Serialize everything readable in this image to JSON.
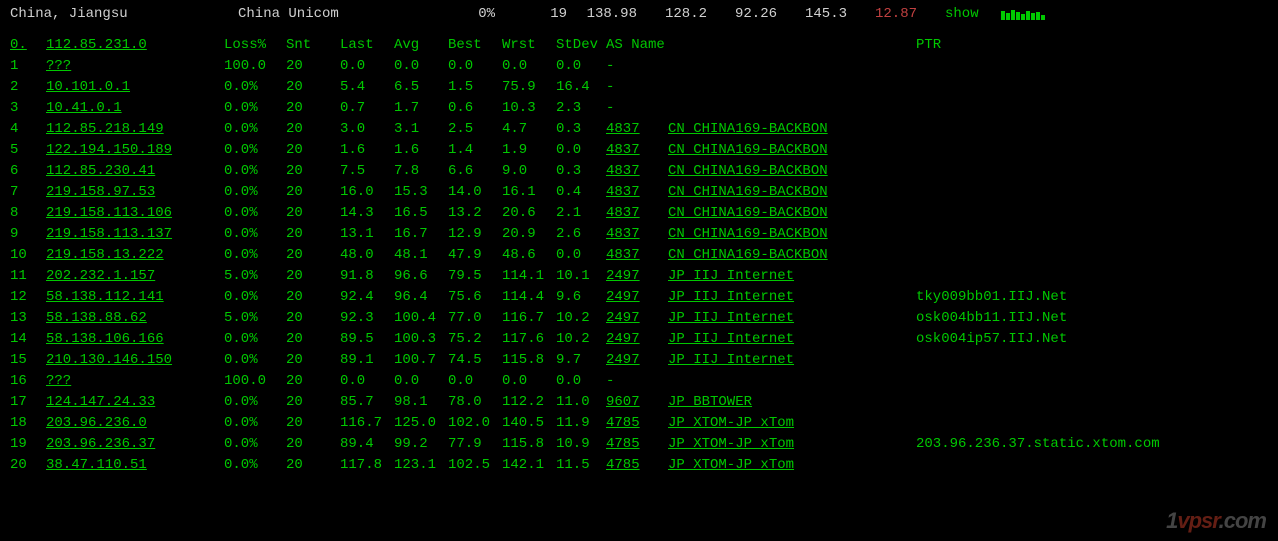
{
  "header": {
    "location": "China, Jiangsu",
    "isp": "China Unicom",
    "pct": "0%",
    "num": "19",
    "stats": [
      "138.98",
      "128.2",
      "92.26",
      "145.3"
    ],
    "red_stat": "12.87",
    "show": "show"
  },
  "columns": {
    "hop": "0.",
    "ip": "112.85.231.0",
    "loss": "Loss%",
    "snt": "Snt",
    "last": "Last",
    "avg": "Avg",
    "best": "Best",
    "wrst": "Wrst",
    "stdev": "StDev",
    "asname": "AS Name",
    "ptr": "PTR"
  },
  "rows": [
    {
      "hop": "1",
      "ip": "???",
      "loss": "100.0",
      "snt": "20",
      "last": "0.0",
      "avg": "0.0",
      "best": "0.0",
      "wrst": "0.0",
      "stdev": "0.0",
      "asn": "",
      "asname": "-",
      "ptr": ""
    },
    {
      "hop": "2",
      "ip": "10.101.0.1",
      "loss": "0.0%",
      "snt": "20",
      "last": "5.4",
      "avg": "6.5",
      "best": "1.5",
      "wrst": "75.9",
      "stdev": "16.4",
      "asn": "",
      "asname": "-",
      "ptr": ""
    },
    {
      "hop": "3",
      "ip": "10.41.0.1",
      "loss": "0.0%",
      "snt": "20",
      "last": "0.7",
      "avg": "1.7",
      "best": "0.6",
      "wrst": "10.3",
      "stdev": "2.3",
      "asn": "",
      "asname": "-",
      "ptr": ""
    },
    {
      "hop": "4",
      "ip": "112.85.218.149",
      "loss": "0.0%",
      "snt": "20",
      "last": "3.0",
      "avg": "3.1",
      "best": "2.5",
      "wrst": "4.7",
      "stdev": "0.3",
      "asn": "4837",
      "asname": "CN CHINA169-BACKBON",
      "ptr": ""
    },
    {
      "hop": "5",
      "ip": "122.194.150.189",
      "loss": "0.0%",
      "snt": "20",
      "last": "1.6",
      "avg": "1.6",
      "best": "1.4",
      "wrst": "1.9",
      "stdev": "0.0",
      "asn": "4837",
      "asname": "CN CHINA169-BACKBON",
      "ptr": ""
    },
    {
      "hop": "6",
      "ip": "112.85.230.41",
      "loss": "0.0%",
      "snt": "20",
      "last": "7.5",
      "avg": "7.8",
      "best": "6.6",
      "wrst": "9.0",
      "stdev": "0.3",
      "asn": "4837",
      "asname": "CN CHINA169-BACKBON",
      "ptr": ""
    },
    {
      "hop": "7",
      "ip": "219.158.97.53",
      "loss": "0.0%",
      "snt": "20",
      "last": "16.0",
      "avg": "15.3",
      "best": "14.0",
      "wrst": "16.1",
      "stdev": "0.4",
      "asn": "4837",
      "asname": "CN CHINA169-BACKBON",
      "ptr": ""
    },
    {
      "hop": "8",
      "ip": "219.158.113.106",
      "loss": "0.0%",
      "snt": "20",
      "last": "14.3",
      "avg": "16.5",
      "best": "13.2",
      "wrst": "20.6",
      "stdev": "2.1",
      "asn": "4837",
      "asname": "CN CHINA169-BACKBON",
      "ptr": ""
    },
    {
      "hop": "9",
      "ip": "219.158.113.137",
      "loss": "0.0%",
      "snt": "20",
      "last": "13.1",
      "avg": "16.7",
      "best": "12.9",
      "wrst": "20.9",
      "stdev": "2.6",
      "asn": "4837",
      "asname": "CN CHINA169-BACKBON",
      "ptr": ""
    },
    {
      "hop": "10",
      "ip": "219.158.13.222",
      "loss": "0.0%",
      "snt": "20",
      "last": "48.0",
      "avg": "48.1",
      "best": "47.9",
      "wrst": "48.6",
      "stdev": "0.0",
      "asn": "4837",
      "asname": "CN CHINA169-BACKBON",
      "ptr": ""
    },
    {
      "hop": "11",
      "ip": "202.232.1.157",
      "loss": "5.0%",
      "snt": "20",
      "last": "91.8",
      "avg": "96.6",
      "best": "79.5",
      "wrst": "114.1",
      "stdev": "10.1",
      "asn": "2497",
      "asname": "JP IIJ Internet",
      "ptr": ""
    },
    {
      "hop": "12",
      "ip": "58.138.112.141",
      "loss": "0.0%",
      "snt": "20",
      "last": "92.4",
      "avg": "96.4",
      "best": "75.6",
      "wrst": "114.4",
      "stdev": "9.6",
      "asn": "2497",
      "asname": "JP IIJ Internet",
      "ptr": "tky009bb01.IIJ.Net"
    },
    {
      "hop": "13",
      "ip": "58.138.88.62",
      "loss": "5.0%",
      "snt": "20",
      "last": "92.3",
      "avg": "100.4",
      "best": "77.0",
      "wrst": "116.7",
      "stdev": "10.2",
      "asn": "2497",
      "asname": "JP IIJ Internet",
      "ptr": "osk004bb11.IIJ.Net"
    },
    {
      "hop": "14",
      "ip": "58.138.106.166",
      "loss": "0.0%",
      "snt": "20",
      "last": "89.5",
      "avg": "100.3",
      "best": "75.2",
      "wrst": "117.6",
      "stdev": "10.2",
      "asn": "2497",
      "asname": "JP IIJ Internet",
      "ptr": "osk004ip57.IIJ.Net"
    },
    {
      "hop": "15",
      "ip": "210.130.146.150",
      "loss": "0.0%",
      "snt": "20",
      "last": "89.1",
      "avg": "100.7",
      "best": "74.5",
      "wrst": "115.8",
      "stdev": "9.7",
      "asn": "2497",
      "asname": "JP IIJ Internet",
      "ptr": ""
    },
    {
      "hop": "16",
      "ip": "???",
      "loss": "100.0",
      "snt": "20",
      "last": "0.0",
      "avg": "0.0",
      "best": "0.0",
      "wrst": "0.0",
      "stdev": "0.0",
      "asn": "",
      "asname": "-",
      "ptr": ""
    },
    {
      "hop": "17",
      "ip": "124.147.24.33",
      "loss": "0.0%",
      "snt": "20",
      "last": "85.7",
      "avg": "98.1",
      "best": "78.0",
      "wrst": "112.2",
      "stdev": "11.0",
      "asn": "9607",
      "asname": "JP BBTOWER",
      "ptr": ""
    },
    {
      "hop": "18",
      "ip": "203.96.236.0",
      "loss": "0.0%",
      "snt": "20",
      "last": "116.7",
      "avg": "125.0",
      "best": "102.0",
      "wrst": "140.5",
      "stdev": "11.9",
      "asn": "4785",
      "asname": "JP XTOM-JP xTom",
      "ptr": ""
    },
    {
      "hop": "19",
      "ip": "203.96.236.37",
      "loss": "0.0%",
      "snt": "20",
      "last": "89.4",
      "avg": "99.2",
      "best": "77.9",
      "wrst": "115.8",
      "stdev": "10.9",
      "asn": "4785",
      "asname": "JP XTOM-JP xTom",
      "ptr": "203.96.236.37.static.xtom.com"
    },
    {
      "hop": "20",
      "ip": "38.47.110.51",
      "loss": "0.0%",
      "snt": "20",
      "last": "117.8",
      "avg": "123.1",
      "best": "102.5",
      "wrst": "142.1",
      "stdev": "11.5",
      "asn": "4785",
      "asname": "JP XTOM-JP xTom",
      "ptr": ""
    }
  ],
  "watermark": "1vpsr.com"
}
